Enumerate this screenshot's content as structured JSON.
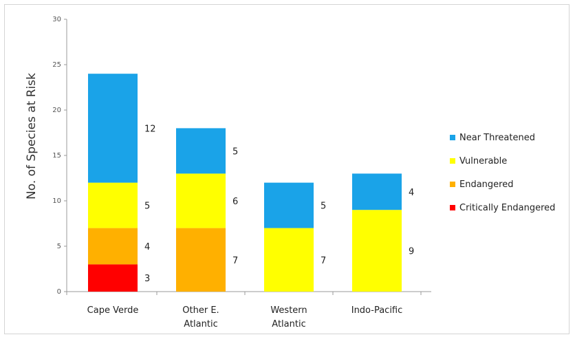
{
  "chart_data": {
    "type": "bar",
    "stacked": true,
    "categories": [
      "Cape Verde",
      "Other E. Atlantic",
      "Western Atlantic",
      "Indo-Pacific"
    ],
    "category_lines": [
      [
        "Cape Verde"
      ],
      [
        "Other E.",
        "Atlantic"
      ],
      [
        "Western",
        "Atlantic"
      ],
      [
        "Indo-Pacific"
      ]
    ],
    "series": [
      {
        "name": "Critically Endangered",
        "color": "#ff0000",
        "values": [
          3,
          0,
          0,
          0
        ]
      },
      {
        "name": "Endangered",
        "color": "#ffb000",
        "values": [
          4,
          7,
          0,
          0
        ]
      },
      {
        "name": "Vulnerable",
        "color": "#ffff00",
        "values": [
          5,
          6,
          7,
          9
        ]
      },
      {
        "name": "Near Threatened",
        "color": "#1aa3e8",
        "values": [
          12,
          5,
          5,
          4
        ]
      }
    ],
    "legend_order": [
      "Near Threatened",
      "Vulnerable",
      "Endangered",
      "Critically Endangered"
    ],
    "legend_position": "right",
    "title": "",
    "xlabel": "",
    "ylabel": "No. of Species at Risk",
    "ylim": [
      0,
      30
    ],
    "yticks": [
      0,
      5,
      10,
      15,
      20,
      25,
      30
    ],
    "grid": false,
    "data_labels_right_of_bars": true
  }
}
